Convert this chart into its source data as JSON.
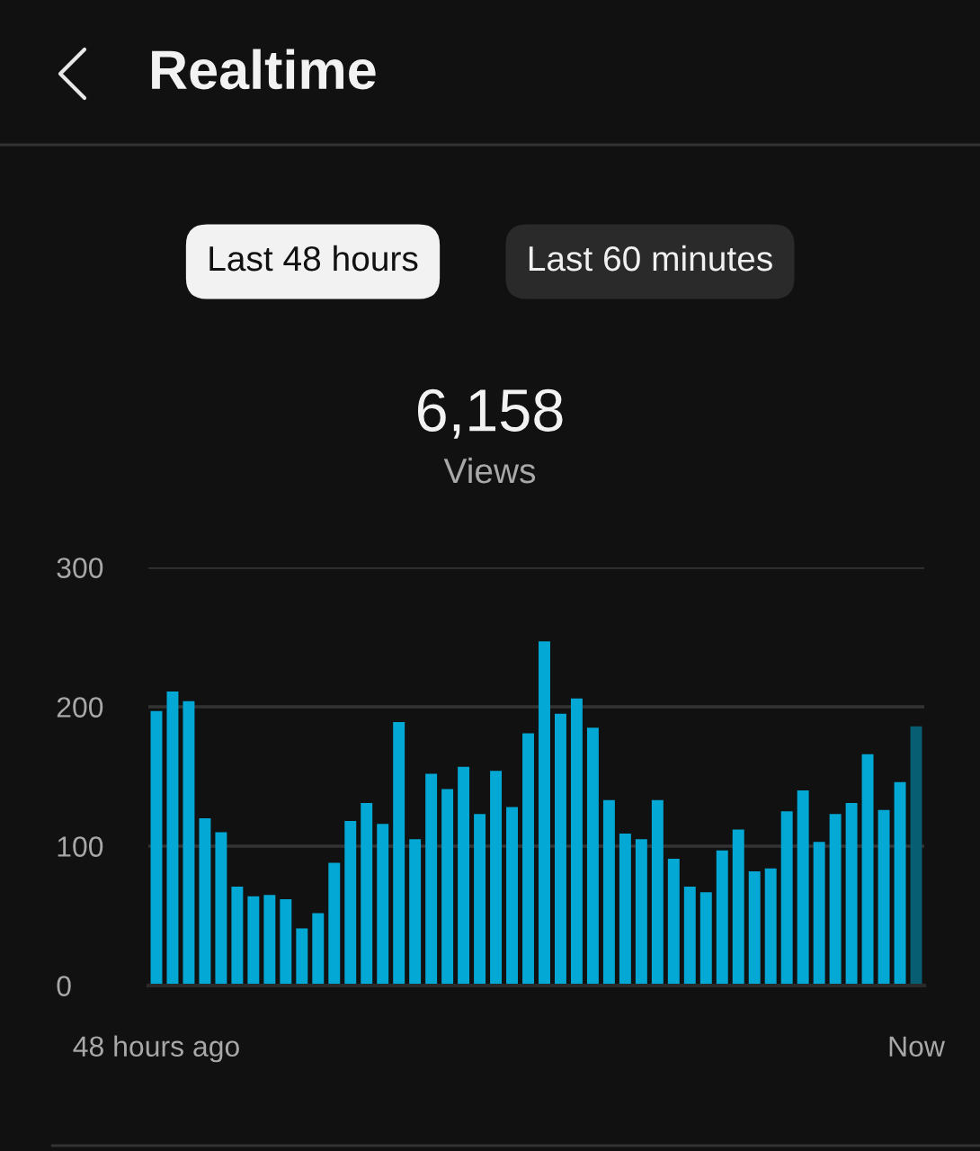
{
  "chart_data": {
    "type": "bar",
    "title": "Realtime",
    "annotations": [
      "Last 48 hours",
      "Last 60 minutes",
      "6,158",
      "Views"
    ],
    "categories": [
      "48 hours ago",
      null,
      null,
      null,
      null,
      null,
      null,
      null,
      null,
      null,
      null,
      null,
      null,
      null,
      null,
      null,
      null,
      null,
      null,
      null,
      null,
      null,
      null,
      null,
      null,
      null,
      null,
      null,
      null,
      null,
      null,
      null,
      null,
      null,
      null,
      null,
      null,
      null,
      null,
      null,
      null,
      null,
      null,
      null,
      null,
      null,
      null,
      "Now"
    ],
    "values": [
      197,
      211,
      204,
      120,
      110,
      71,
      64,
      65,
      62,
      41,
      52,
      88,
      118,
      131,
      116,
      189,
      105,
      152,
      141,
      157,
      123,
      154,
      128,
      181,
      247,
      195,
      206,
      185,
      133,
      109,
      105,
      133,
      91,
      71,
      67,
      97,
      112,
      82,
      84,
      125,
      140,
      103,
      123,
      131,
      166,
      126,
      146,
      186
    ],
    "colors": [
      "#03a8d4",
      "#03a8d4",
      "#03a8d4",
      "#03a8d4",
      "#03a8d4",
      "#03a8d4",
      "#03a8d4",
      "#03a8d4",
      "#03a8d4",
      "#03a8d4",
      "#03a8d4",
      "#03a8d4",
      "#03a8d4",
      "#03a8d4",
      "#03a8d4",
      "#03a8d4",
      "#03a8d4",
      "#03a8d4",
      "#03a8d4",
      "#03a8d4",
      "#03a8d4",
      "#03a8d4",
      "#03a8d4",
      "#03a8d4",
      "#03a8d4",
      "#03a8d4",
      "#03a8d4",
      "#03a8d4",
      "#03a8d4",
      "#03a8d4",
      "#03a8d4",
      "#03a8d4",
      "#03a8d4",
      "#03a8d4",
      "#03a8d4",
      "#03a8d4",
      "#03a8d4",
      "#03a8d4",
      "#03a8d4",
      "#03a8d4",
      "#03a8d4",
      "#03a8d4",
      "#03a8d4",
      "#03a8d4",
      "#03a8d4",
      "#03a8d4",
      "#03a8d4",
      "#075d72"
    ],
    "ylim": [
      0,
      300
    ],
    "yticks": [
      0,
      100,
      200,
      300
    ],
    "grid": "y",
    "legend": false
  }
}
